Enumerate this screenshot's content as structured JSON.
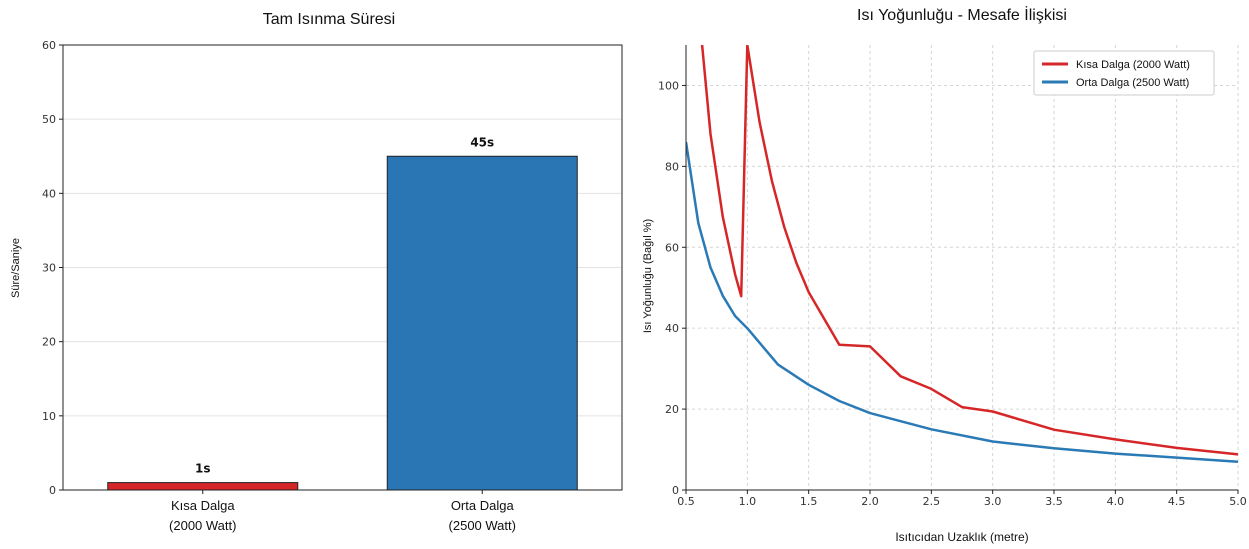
{
  "chart_data": [
    {
      "type": "bar",
      "title": "Tam Isınma Süresi",
      "xlabel": "",
      "ylabel": "Süre/Saniye",
      "ylim": [
        0,
        60
      ],
      "yticks": [
        0,
        10,
        20,
        30,
        40,
        50,
        60
      ],
      "categories": [
        {
          "line1": "Kısa Dalga",
          "line2": "(2000 Watt)"
        },
        {
          "line1": "Orta Dalga",
          "line2": "(2500 Watt)"
        }
      ],
      "values": [
        1,
        45
      ],
      "data_labels": [
        "1s",
        "45s"
      ],
      "colors": [
        "#d62728",
        "#2a75b3"
      ],
      "grid": "horizontal"
    },
    {
      "type": "line",
      "title": "Isı Yoğunluğu - Mesafe İlişkisi",
      "xlabel": "Isıtıcıdan Uzaklık (metre)",
      "ylabel": "Isı Yoğunluğu (Bağıl %)",
      "xlim": [
        0.5,
        5.0
      ],
      "ylim": [
        0,
        110
      ],
      "xticks": [
        "0.5",
        "1.0",
        "1.5",
        "2.0",
        "2.5",
        "3.0",
        "3.5",
        "4.0",
        "4.5",
        "5.0"
      ],
      "yticks": [
        0,
        20,
        40,
        60,
        80,
        100
      ],
      "grid": "both",
      "legend_position": "top-right",
      "series": [
        {
          "name": "Kısa Dalga (2000 Watt)",
          "color": "#d62728",
          "x": [
            0.5,
            0.6,
            0.7,
            0.8,
            0.9,
            0.95,
            1.0,
            1.1,
            1.2,
            1.3,
            1.4,
            1.5,
            1.75,
            2.0,
            2.25,
            2.5,
            2.75,
            3.0,
            3.5,
            4.0,
            4.5,
            5.0
          ],
          "y": [
            173,
            120,
            88,
            67.5,
            53.3,
            47.9,
            110,
            90.9,
            76.4,
            65.1,
            56.1,
            48.9,
            35.9,
            35.5,
            28.1,
            25,
            20.5,
            19.4,
            14.9,
            12.5,
            10.4,
            8.8
          ]
        },
        {
          "name": "Orta Dalga (2500 Watt)",
          "color": "#2a7ab5",
          "x": [
            0.5,
            0.6,
            0.7,
            0.8,
            0.9,
            1.0,
            1.25,
            1.5,
            1.75,
            2.0,
            2.5,
            3.0,
            3.5,
            4.0,
            4.5,
            5.0
          ],
          "y": [
            86,
            66,
            55,
            48,
            43,
            40,
            31,
            26,
            22,
            19,
            15,
            12,
            10.3,
            9,
            8,
            7
          ]
        }
      ]
    }
  ]
}
